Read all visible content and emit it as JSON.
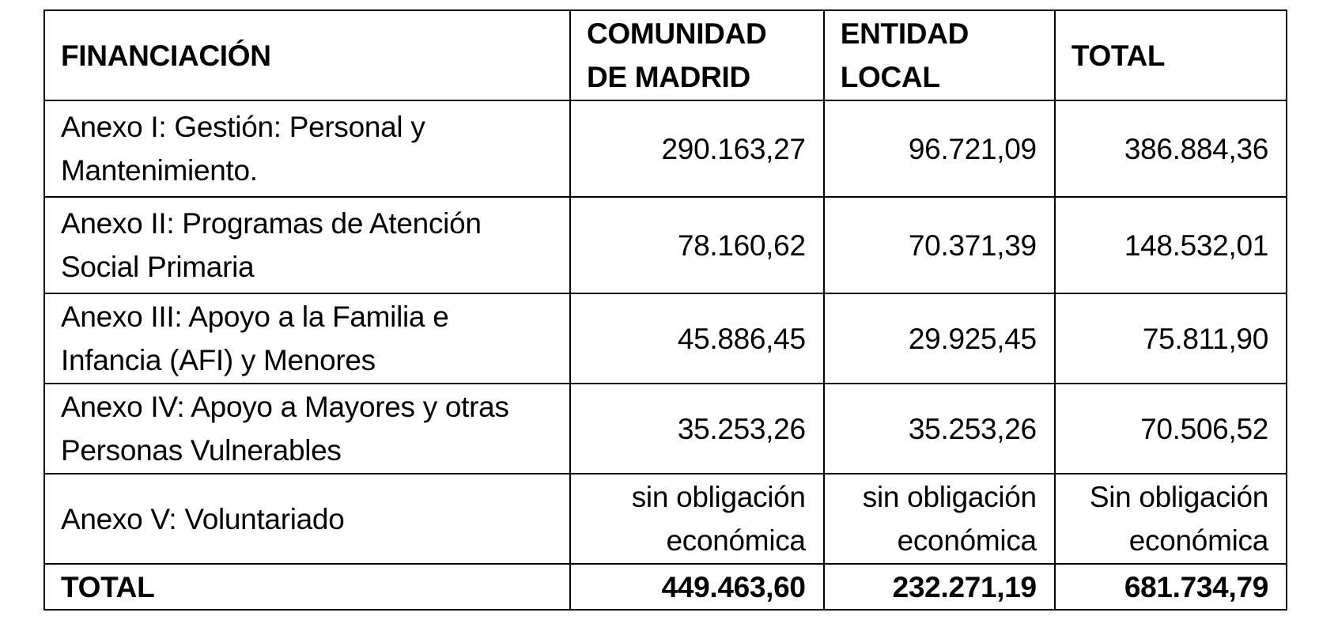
{
  "table": {
    "headers": [
      "FINANCIACIÓN",
      "COMUNIDAD\nDE MADRID",
      "ENTIDAD\nLOCAL",
      "TOTAL"
    ],
    "rows": [
      {
        "label": "Anexo I: Gestión: Personal y\nMantenimiento.",
        "comunidad": "290.163,27",
        "entidad": "96.721,09",
        "total": "386.884,36"
      },
      {
        "label": "Anexo II: Programas de Atención\nSocial Primaria",
        "comunidad": "78.160,62",
        "entidad": "70.371,39",
        "total": "148.532,01"
      },
      {
        "label": "Anexo III: Apoyo a la Familia e\nInfancia (AFI) y Menores",
        "comunidad": "45.886,45",
        "entidad": "29.925,45",
        "total": "75.811,90"
      },
      {
        "label": "Anexo IV: Apoyo a Mayores y otras\nPersonas  Vulnerables",
        "comunidad": "35.253,26",
        "entidad": "35.253,26",
        "total": "70.506,52"
      },
      {
        "label": "Anexo V: Voluntariado",
        "comunidad": "sin obligación\neconómica",
        "entidad": "sin obligación\neconómica",
        "total": "Sin obligación\neconómica"
      }
    ],
    "total_row": {
      "label": "TOTAL",
      "comunidad": "449.463,60",
      "entidad": "232.271,19",
      "total": "681.734,79"
    }
  }
}
